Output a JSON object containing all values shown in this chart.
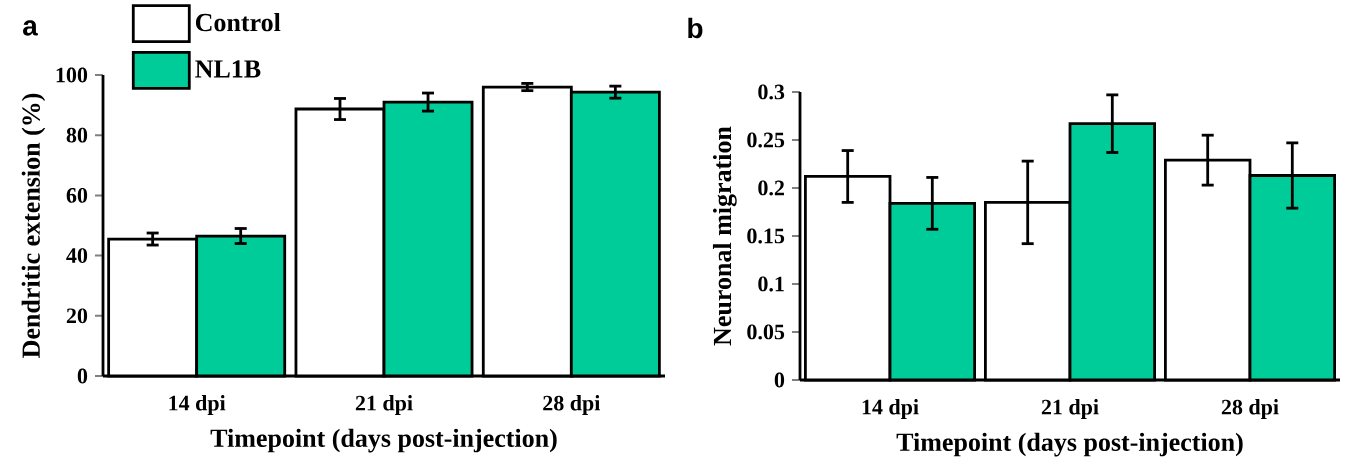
{
  "chart_data": [
    {
      "type": "bar",
      "title": "a",
      "ylabel": "Dendritic extension (%)",
      "xlabel": "Timepoint (days post-injection)",
      "categories": [
        "14 dpi",
        "21 dpi",
        "28 dpi"
      ],
      "ylim": [
        0,
        100
      ],
      "yticks": [
        0,
        20,
        40,
        60,
        80,
        100
      ],
      "legend": "top left",
      "series": [
        {
          "name": "Control",
          "color": "#ffffff",
          "values": [
            45.5,
            88.7,
            96
          ],
          "errors": [
            2,
            3.5,
            1.2
          ]
        },
        {
          "name": "NL1B",
          "color": "#00cc99",
          "values": [
            46.5,
            91,
            94.3
          ],
          "errors": [
            2.5,
            3,
            2
          ]
        }
      ]
    },
    {
      "type": "bar",
      "title": "b",
      "ylabel": "Neuronal migration",
      "xlabel": "Timepoint (days post-injection)",
      "categories": [
        "14 dpi",
        "21 dpi",
        "28 dpi"
      ],
      "ylim": [
        0,
        0.3
      ],
      "yticks": [
        0,
        0.05,
        0.1,
        0.15,
        0.2,
        0.25,
        0.3
      ],
      "series": [
        {
          "color": "#ffffff",
          "values": [
            0.212,
            0.185,
            0.229
          ],
          "errors": [
            0.027,
            0.043,
            0.026
          ]
        },
        {
          "color": "#00cc99",
          "values": [
            0.184,
            0.267,
            0.213
          ],
          "errors": [
            0.027,
            0.03,
            0.034
          ]
        }
      ]
    }
  ]
}
